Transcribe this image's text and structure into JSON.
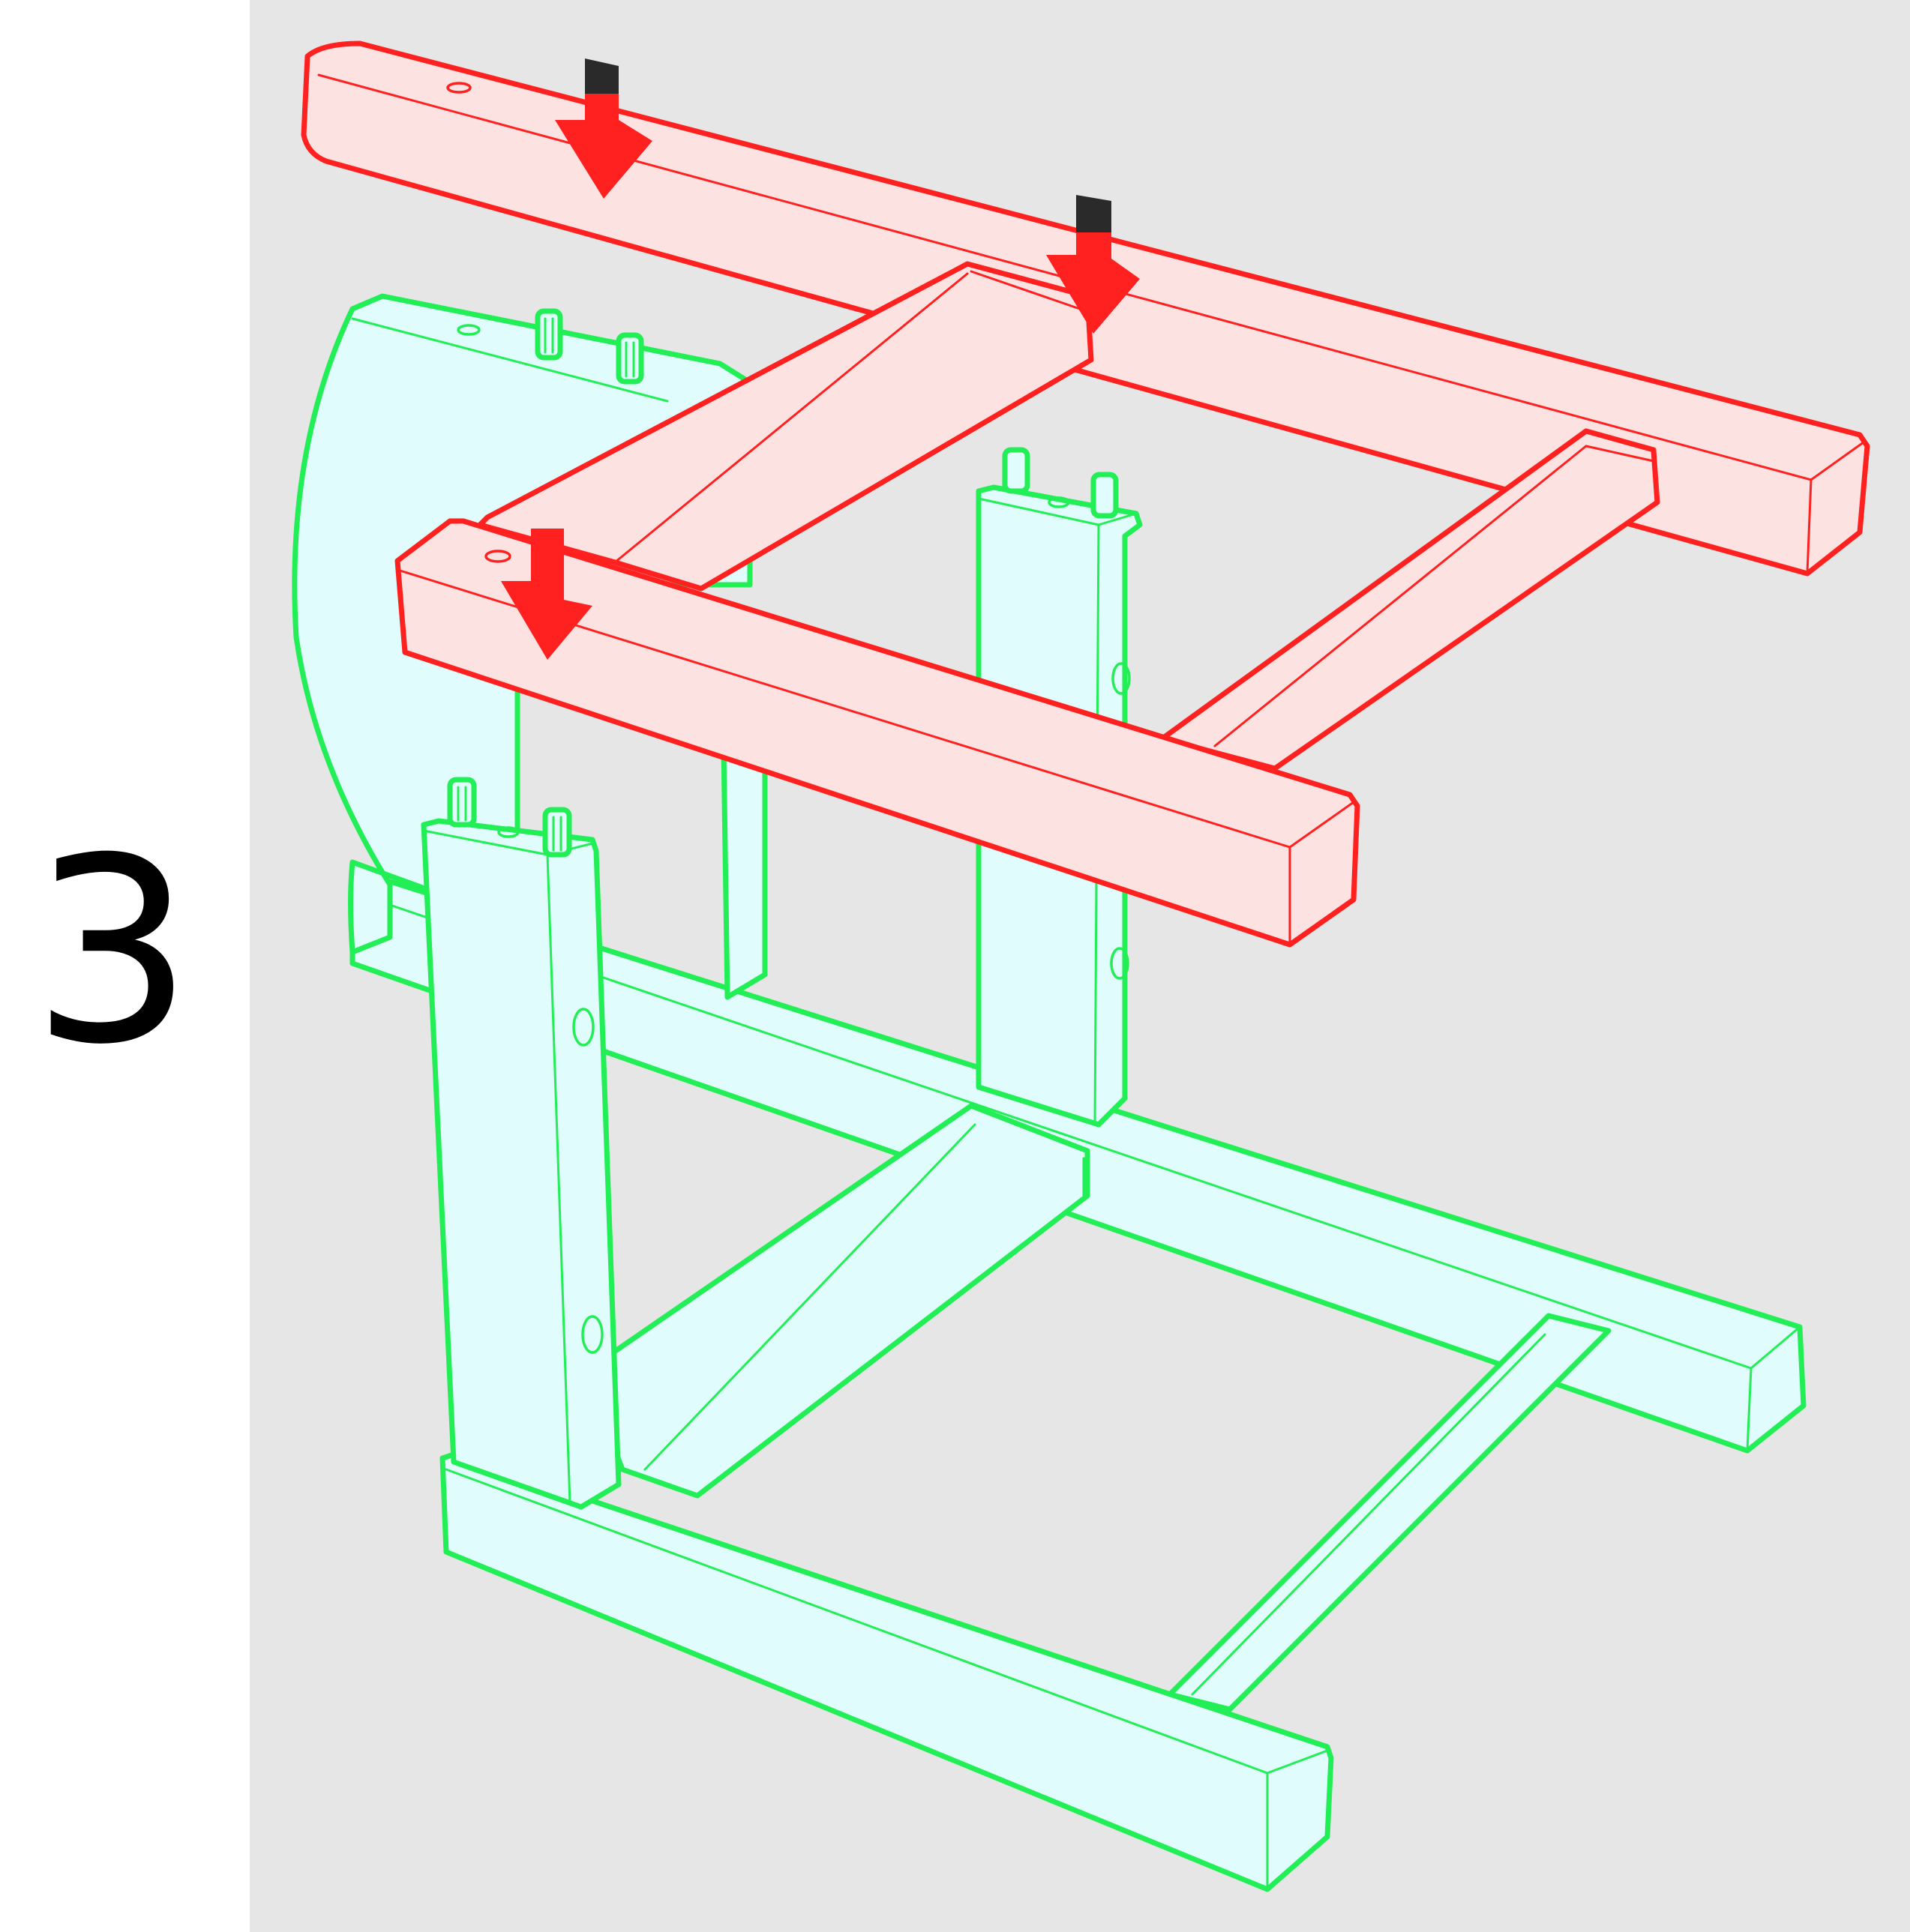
{
  "step": {
    "number": "3"
  },
  "colors": {
    "background": "#e6e6e6",
    "new_part_stroke": "#ff2020",
    "new_part_fill": "#fde2e2",
    "existing_part_stroke": "#22ee55",
    "existing_part_fill": "#e0fcfc",
    "arrow": "#ff2020",
    "arrow_tail": "#2a2a2a"
  },
  "icons": [
    "down-arrow-icon",
    "dowel-icon"
  ]
}
